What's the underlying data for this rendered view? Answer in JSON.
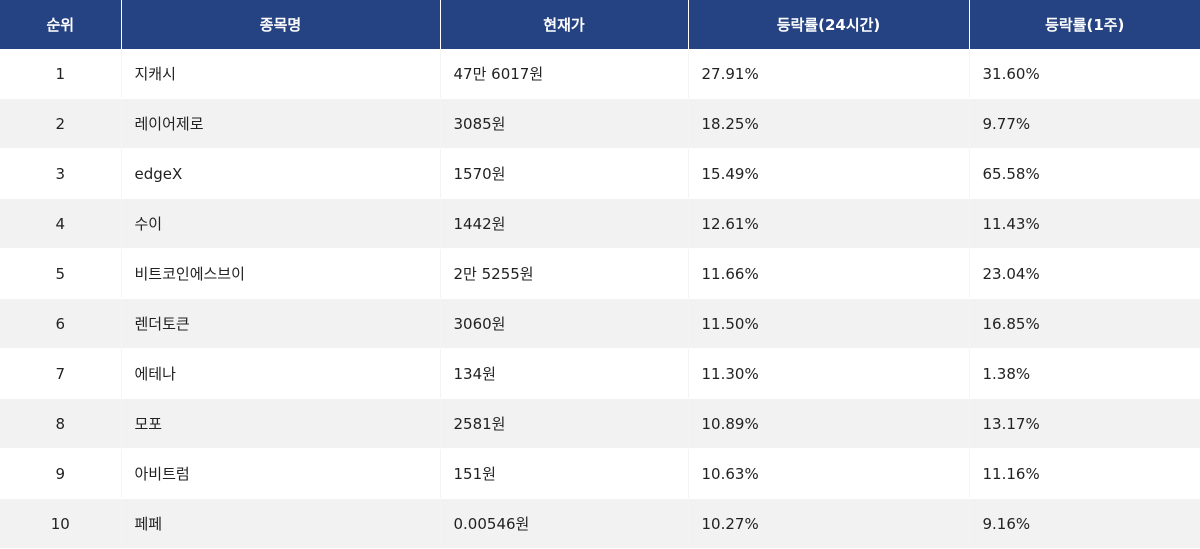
{
  "table": {
    "headers": [
      "순위",
      "종목명",
      "현재가",
      "등락률(24시간)",
      "등락률(1주)"
    ],
    "rows": [
      {
        "rank": "1",
        "name": "지캐시",
        "price": "47만 6017원",
        "change_24h": "27.91%",
        "change_1w": "31.60%"
      },
      {
        "rank": "2",
        "name": "레이어제로",
        "price": "3085원",
        "change_24h": "18.25%",
        "change_1w": "9.77%"
      },
      {
        "rank": "3",
        "name": "edgeX",
        "price": "1570원",
        "change_24h": "15.49%",
        "change_1w": "65.58%"
      },
      {
        "rank": "4",
        "name": "수이",
        "price": "1442원",
        "change_24h": "12.61%",
        "change_1w": "11.43%"
      },
      {
        "rank": "5",
        "name": "비트코인에스브이",
        "price": "2만 5255원",
        "change_24h": "11.66%",
        "change_1w": "23.04%"
      },
      {
        "rank": "6",
        "name": "렌더토큰",
        "price": "3060원",
        "change_24h": "11.50%",
        "change_1w": "16.85%"
      },
      {
        "rank": "7",
        "name": "에테나",
        "price": "134원",
        "change_24h": "11.30%",
        "change_1w": "1.38%"
      },
      {
        "rank": "8",
        "name": "모포",
        "price": "2581원",
        "change_24h": "10.89%",
        "change_1w": "13.17%"
      },
      {
        "rank": "9",
        "name": "아비트럼",
        "price": "151원",
        "change_24h": "10.63%",
        "change_1w": "11.16%"
      },
      {
        "rank": "10",
        "name": "페페",
        "price": "0.00546원",
        "change_24h": "10.27%",
        "change_1w": "9.16%"
      }
    ]
  },
  "colors": {
    "header_bg": "#254283",
    "header_text": "#ffffff",
    "row_alt_bg": "#f2f2f2",
    "row_bg": "#ffffff",
    "text": "#222222"
  }
}
